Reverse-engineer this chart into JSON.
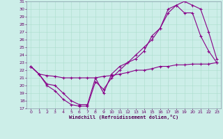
{
  "xlabel": "Windchill (Refroidissement éolien,°C)",
  "bg_color": "#cceee8",
  "grid_color": "#aaddcc",
  "line_color": "#880088",
  "xlim": [
    -0.5,
    23.5
  ],
  "ylim": [
    17,
    31
  ],
  "xticks": [
    0,
    1,
    2,
    3,
    4,
    5,
    6,
    7,
    8,
    9,
    10,
    11,
    12,
    13,
    14,
    15,
    16,
    17,
    18,
    19,
    20,
    21,
    22,
    23
  ],
  "yticks": [
    17,
    18,
    19,
    20,
    21,
    22,
    23,
    24,
    25,
    26,
    27,
    28,
    29,
    30,
    31
  ],
  "line1_x": [
    0,
    1,
    2,
    3,
    4,
    5,
    6,
    7,
    8,
    9,
    10,
    11,
    12,
    13,
    14,
    15,
    16,
    17,
    18,
    19,
    20,
    21,
    22,
    23
  ],
  "line1_y": [
    22.5,
    21.5,
    20.0,
    19.3,
    18.2,
    17.5,
    17.3,
    17.3,
    20.5,
    19.5,
    21.0,
    22.0,
    23.0,
    23.5,
    24.5,
    26.5,
    27.5,
    29.5,
    30.5,
    31.0,
    30.5,
    30.0,
    27.0,
    23.5
  ],
  "line2_x": [
    0,
    1,
    2,
    3,
    4,
    5,
    6,
    7,
    8,
    9,
    10,
    11,
    12,
    13,
    14,
    15,
    16,
    17,
    18,
    19,
    20,
    21,
    22,
    23
  ],
  "line2_y": [
    22.5,
    21.5,
    20.2,
    20.0,
    19.0,
    18.0,
    17.5,
    17.5,
    21.0,
    19.0,
    21.5,
    22.5,
    23.0,
    24.0,
    25.0,
    26.0,
    27.5,
    30.0,
    30.5,
    29.5,
    29.5,
    26.5,
    24.5,
    23.0
  ],
  "line3_x": [
    0,
    1,
    2,
    3,
    4,
    5,
    6,
    7,
    8,
    9,
    10,
    11,
    12,
    13,
    14,
    15,
    16,
    17,
    18,
    19,
    20,
    21,
    22,
    23
  ],
  "line3_y": [
    22.5,
    21.5,
    21.3,
    21.2,
    21.0,
    21.0,
    21.0,
    21.0,
    21.0,
    21.2,
    21.3,
    21.5,
    21.7,
    22.0,
    22.0,
    22.2,
    22.5,
    22.5,
    22.7,
    22.7,
    22.8,
    22.8,
    22.8,
    23.0
  ]
}
